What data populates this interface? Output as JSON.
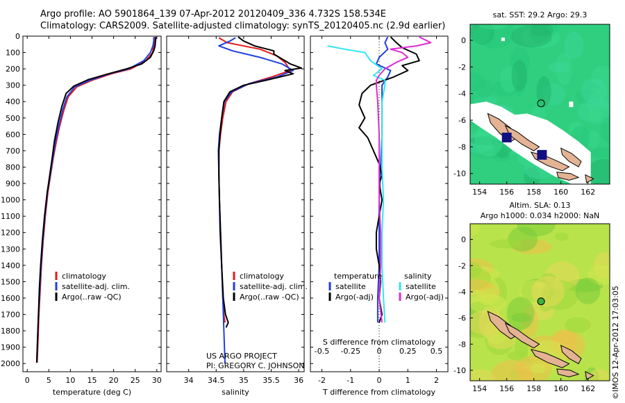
{
  "header": {
    "line1": "Argo profile: AO 5901864_139 07-Apr-2012 20120409_336 4.732S 158.534E",
    "line2": "Climatology: CARS2009. Satellite-adjusted climatology: synTS_20120405.nc (2.9d earlier)"
  },
  "colors": {
    "climatology": "#e41a1c",
    "satellite": "#1f3fe0",
    "argo": "#000000",
    "sat_diff": "#2ee6f0",
    "argo_adj_s": "#e02ad6",
    "land": "#e3b394",
    "ocean_sst": "#2fcf7f",
    "ocean_sla": "#b9e34a"
  },
  "chart_data": [
    {
      "type": "line",
      "id": "temperature",
      "xlabel": "temperature (deg C)",
      "xlim": [
        -1,
        31
      ],
      "xticks": [
        0,
        5,
        10,
        15,
        20,
        25,
        30
      ],
      "ylim": [
        2050,
        0
      ],
      "yticks": [
        0,
        100,
        200,
        300,
        400,
        500,
        600,
        700,
        800,
        900,
        1000,
        1100,
        1200,
        1300,
        1400,
        1500,
        1600,
        1700,
        1800,
        1900,
        2000
      ],
      "legend": [
        "climatology",
        "satellite-adj. clim.",
        "Argo(..raw -QC)"
      ],
      "series": [
        {
          "name": "climatology",
          "color": "#e41a1c",
          "points": [
            [
              29.6,
              5
            ],
            [
              29.5,
              30
            ],
            [
              29.3,
              60
            ],
            [
              29.0,
              100
            ],
            [
              27.5,
              150
            ],
            [
              24.0,
              200
            ],
            [
              19.5,
              230
            ],
            [
              15.0,
              270
            ],
            [
              11.5,
              310
            ],
            [
              9.5,
              370
            ],
            [
              8.5,
              450
            ],
            [
              7.5,
              550
            ],
            [
              6.7,
              650
            ],
            [
              6.0,
              750
            ],
            [
              5.4,
              850
            ],
            [
              4.8,
              950
            ],
            [
              4.2,
              1100
            ],
            [
              3.7,
              1250
            ],
            [
              3.3,
              1400
            ],
            [
              3.0,
              1550
            ],
            [
              2.7,
              1700
            ],
            [
              2.5,
              1850
            ],
            [
              2.3,
              1995
            ]
          ]
        },
        {
          "name": "satellite-adj. clim.",
          "color": "#1f3fe0",
          "points": [
            [
              29.3,
              5
            ],
            [
              29.3,
              30
            ],
            [
              29.1,
              60
            ],
            [
              28.5,
              100
            ],
            [
              27.0,
              150
            ],
            [
              23.5,
              200
            ],
            [
              19.0,
              230
            ],
            [
              14.5,
              270
            ],
            [
              11.0,
              310
            ],
            [
              9.2,
              370
            ],
            [
              8.2,
              450
            ],
            [
              7.3,
              550
            ],
            [
              6.5,
              650
            ],
            [
              5.9,
              750
            ],
            [
              5.3,
              850
            ],
            [
              4.7,
              950
            ],
            [
              4.1,
              1100
            ],
            [
              3.6,
              1250
            ],
            [
              3.2,
              1400
            ],
            [
              2.9,
              1550
            ],
            [
              2.6,
              1700
            ],
            [
              2.4,
              1850
            ],
            [
              2.2,
              1995
            ]
          ]
        },
        {
          "name": "Argo(..raw -QC)",
          "color": "#000000",
          "points": [
            [
              29.8,
              5
            ],
            [
              29.7,
              30
            ],
            [
              29.6,
              60
            ],
            [
              29.3,
              90
            ],
            [
              28.5,
              130
            ],
            [
              26.5,
              170
            ],
            [
              23.0,
              200
            ],
            [
              18.8,
              230
            ],
            [
              14.2,
              265
            ],
            [
              10.8,
              305
            ],
            [
              9.0,
              350
            ],
            [
              8.0,
              430
            ],
            [
              7.1,
              530
            ],
            [
              6.3,
              640
            ],
            [
              5.8,
              740
            ],
            [
              5.2,
              850
            ],
            [
              4.6,
              960
            ],
            [
              4.0,
              1100
            ],
            [
              3.5,
              1250
            ],
            [
              3.1,
              1400
            ],
            [
              2.8,
              1550
            ],
            [
              2.6,
              1700
            ],
            [
              2.4,
              1850
            ],
            [
              2.2,
              1995
            ]
          ]
        }
      ]
    },
    {
      "type": "line",
      "id": "salinity",
      "xlabel": "salinity",
      "xlim": [
        33.6,
        36.1
      ],
      "xticks": [
        34,
        34.5,
        35,
        35.5,
        36
      ],
      "ylim": [
        2050,
        0
      ],
      "legend": [
        "climatology",
        "satellite-adj. clim.",
        "Argo(..raw -QC)"
      ],
      "series": [
        {
          "name": "climatology",
          "color": "#e41a1c",
          "points": [
            [
              34.55,
              10
            ],
            [
              34.7,
              40
            ],
            [
              35.3,
              80
            ],
            [
              35.6,
              120
            ],
            [
              35.75,
              160
            ],
            [
              35.85,
              210
            ],
            [
              35.5,
              250
            ],
            [
              35.1,
              290
            ],
            [
              34.8,
              340
            ],
            [
              34.68,
              400
            ],
            [
              34.62,
              500
            ],
            [
              34.58,
              600
            ],
            [
              34.55,
              700
            ],
            [
              34.55,
              850
            ],
            [
              34.56,
              1000
            ],
            [
              34.58,
              1200
            ],
            [
              34.6,
              1400
            ],
            [
              34.62,
              1600
            ],
            [
              34.64,
              1700
            ],
            [
              34.66,
              1750
            ]
          ]
        },
        {
          "name": "satellite-adj. clim.",
          "color": "#1f3fe0",
          "points": [
            [
              34.85,
              10
            ],
            [
              34.75,
              30
            ],
            [
              34.55,
              60
            ],
            [
              34.8,
              90
            ],
            [
              35.3,
              130
            ],
            [
              35.7,
              170
            ],
            [
              35.9,
              210
            ],
            [
              35.6,
              250
            ],
            [
              35.1,
              290
            ],
            [
              34.78,
              340
            ],
            [
              34.65,
              400
            ],
            [
              34.6,
              500
            ],
            [
              34.56,
              600
            ],
            [
              34.54,
              700
            ],
            [
              34.55,
              850
            ],
            [
              34.56,
              1000
            ],
            [
              34.57,
              1200
            ],
            [
              34.6,
              1400
            ],
            [
              34.62,
              1600
            ],
            [
              34.64,
              1800
            ],
            [
              34.66,
              2000
            ]
          ]
        },
        {
          "name": "Argo(..raw -QC)",
          "color": "#000000",
          "points": [
            [
              34.9,
              5
            ],
            [
              35.0,
              30
            ],
            [
              35.2,
              60
            ],
            [
              35.55,
              90
            ],
            [
              35.55,
              110
            ],
            [
              35.7,
              140
            ],
            [
              35.85,
              170
            ],
            [
              36.05,
              195
            ],
            [
              35.75,
              210
            ],
            [
              35.9,
              230
            ],
            [
              35.4,
              270
            ],
            [
              35.0,
              300
            ],
            [
              34.75,
              340
            ],
            [
              34.64,
              400
            ],
            [
              34.6,
              500
            ],
            [
              34.57,
              600
            ],
            [
              34.55,
              700
            ],
            [
              34.55,
              850
            ],
            [
              34.56,
              1000
            ],
            [
              34.58,
              1200
            ],
            [
              34.6,
              1400
            ],
            [
              34.63,
              1600
            ],
            [
              34.67,
              1700
            ],
            [
              34.72,
              1750
            ],
            [
              34.68,
              1780
            ]
          ]
        }
      ]
    },
    {
      "type": "line",
      "id": "difference",
      "xlabel_bottom": "T difference from climatology",
      "xlabel_top": "S difference from climatology",
      "xlim": [
        -2.4,
        2.4
      ],
      "xticks_bottom": [
        -2,
        -1,
        0,
        1,
        2
      ],
      "xticks_top": [
        -0.5,
        -0.25,
        0,
        0.25,
        0.5
      ],
      "ylim": [
        2050,
        0
      ],
      "legend": {
        "temperature": [
          "satellite",
          "Argo(-adj)"
        ],
        "salinity": [
          "satellite",
          "Argo(-adj)"
        ]
      },
      "series": [
        {
          "name": "temperature satellite",
          "color": "#1f3fe0",
          "points": [
            [
              0.3,
              5
            ],
            [
              0.2,
              40
            ],
            [
              0.3,
              80
            ],
            [
              0.0,
              130
            ],
            [
              -0.1,
              170
            ],
            [
              0.4,
              210
            ],
            [
              0.3,
              250
            ],
            [
              0.1,
              300
            ],
            [
              0.1,
              400
            ],
            [
              0.1,
              600
            ],
            [
              0.05,
              800
            ],
            [
              0.0,
              1000
            ],
            [
              0.0,
              1400
            ],
            [
              -0.05,
              1600
            ],
            [
              -0.05,
              1750
            ]
          ]
        },
        {
          "name": "temperature Argo(-adj)",
          "color": "#000000",
          "points": [
            [
              0.4,
              5
            ],
            [
              0.6,
              40
            ],
            [
              0.8,
              70
            ],
            [
              1.3,
              110
            ],
            [
              1.4,
              150
            ],
            [
              0.8,
              180
            ],
            [
              1.0,
              210
            ],
            [
              0.5,
              250
            ],
            [
              -0.3,
              300
            ],
            [
              -0.6,
              350
            ],
            [
              -0.7,
              420
            ],
            [
              -0.5,
              500
            ],
            [
              -0.7,
              560
            ],
            [
              -0.4,
              620
            ],
            [
              -0.2,
              700
            ],
            [
              0.0,
              780
            ],
            [
              0.1,
              850
            ],
            [
              0.0,
              900
            ],
            [
              0.1,
              1000
            ],
            [
              0.0,
              1100
            ],
            [
              -0.1,
              1200
            ],
            [
              -0.1,
              1300
            ],
            [
              0.0,
              1400
            ],
            [
              0.05,
              1500
            ],
            [
              0.0,
              1600
            ],
            [
              0.1,
              1700
            ],
            [
              0.0,
              1750
            ]
          ]
        },
        {
          "name": "salinity satellite",
          "color": "#2ee6f0",
          "points": [
            [
              -1.8,
              60
            ],
            [
              -1.2,
              80
            ],
            [
              -0.5,
              100
            ],
            [
              -0.3,
              150
            ],
            [
              0.1,
              200
            ],
            [
              -0.2,
              240
            ],
            [
              0.2,
              270
            ],
            [
              0.2,
              300
            ],
            [
              0.1,
              400
            ],
            [
              0.1,
              600
            ],
            [
              0.1,
              800
            ],
            [
              0.15,
              1000
            ],
            [
              0.1,
              1200
            ],
            [
              0.1,
              1400
            ],
            [
              0.15,
              1600
            ],
            [
              0.2,
              1750
            ]
          ]
        },
        {
          "name": "salinity Argo(-adj)",
          "color": "#e02ad6",
          "points": [
            [
              1.4,
              5
            ],
            [
              1.8,
              40
            ],
            [
              1.3,
              60
            ],
            [
              0.4,
              80
            ],
            [
              0.8,
              100
            ],
            [
              1.0,
              130
            ],
            [
              0.6,
              160
            ],
            [
              0.2,
              200
            ],
            [
              0.0,
              240
            ],
            [
              -0.1,
              270
            ],
            [
              -0.1,
              300
            ],
            [
              -0.05,
              400
            ],
            [
              0.0,
              600
            ],
            [
              0.0,
              800
            ],
            [
              0.0,
              1000
            ],
            [
              0.05,
              1200
            ],
            [
              0.05,
              1400
            ],
            [
              0.0,
              1600
            ],
            [
              0.1,
              1750
            ]
          ]
        }
      ]
    },
    {
      "type": "heatmap",
      "id": "sst_map",
      "title": "sat. SST: 29.2 Argo: 29.3",
      "xlim": [
        153.3,
        163.6
      ],
      "ylim": [
        -10.8,
        1.2
      ],
      "xticks": [
        154,
        156,
        158,
        160,
        162
      ],
      "yticks": [
        0,
        -2,
        -4,
        -6,
        -8,
        -10
      ],
      "argo_position": [
        158.534,
        -4.732
      ]
    },
    {
      "type": "heatmap",
      "id": "sla_map",
      "title": "Altim. SLA: 0.13",
      "subtitle": "Argo h1000: 0.034 h2000: NaN",
      "xlim": [
        153.3,
        163.6
      ],
      "ylim": [
        -10.8,
        1.2
      ],
      "xticks": [
        154,
        156,
        158,
        160,
        162
      ],
      "yticks": [
        0,
        -2,
        -4,
        -6,
        -8,
        -10
      ],
      "argo_position": [
        158.534,
        -4.732
      ]
    }
  ],
  "credit": {
    "line1": "US ARGO PROJECT",
    "line2": "PI: GREGORY C. JOHNSON"
  },
  "stamp": "©IMOS 12-Apr-2012 17:03:05"
}
